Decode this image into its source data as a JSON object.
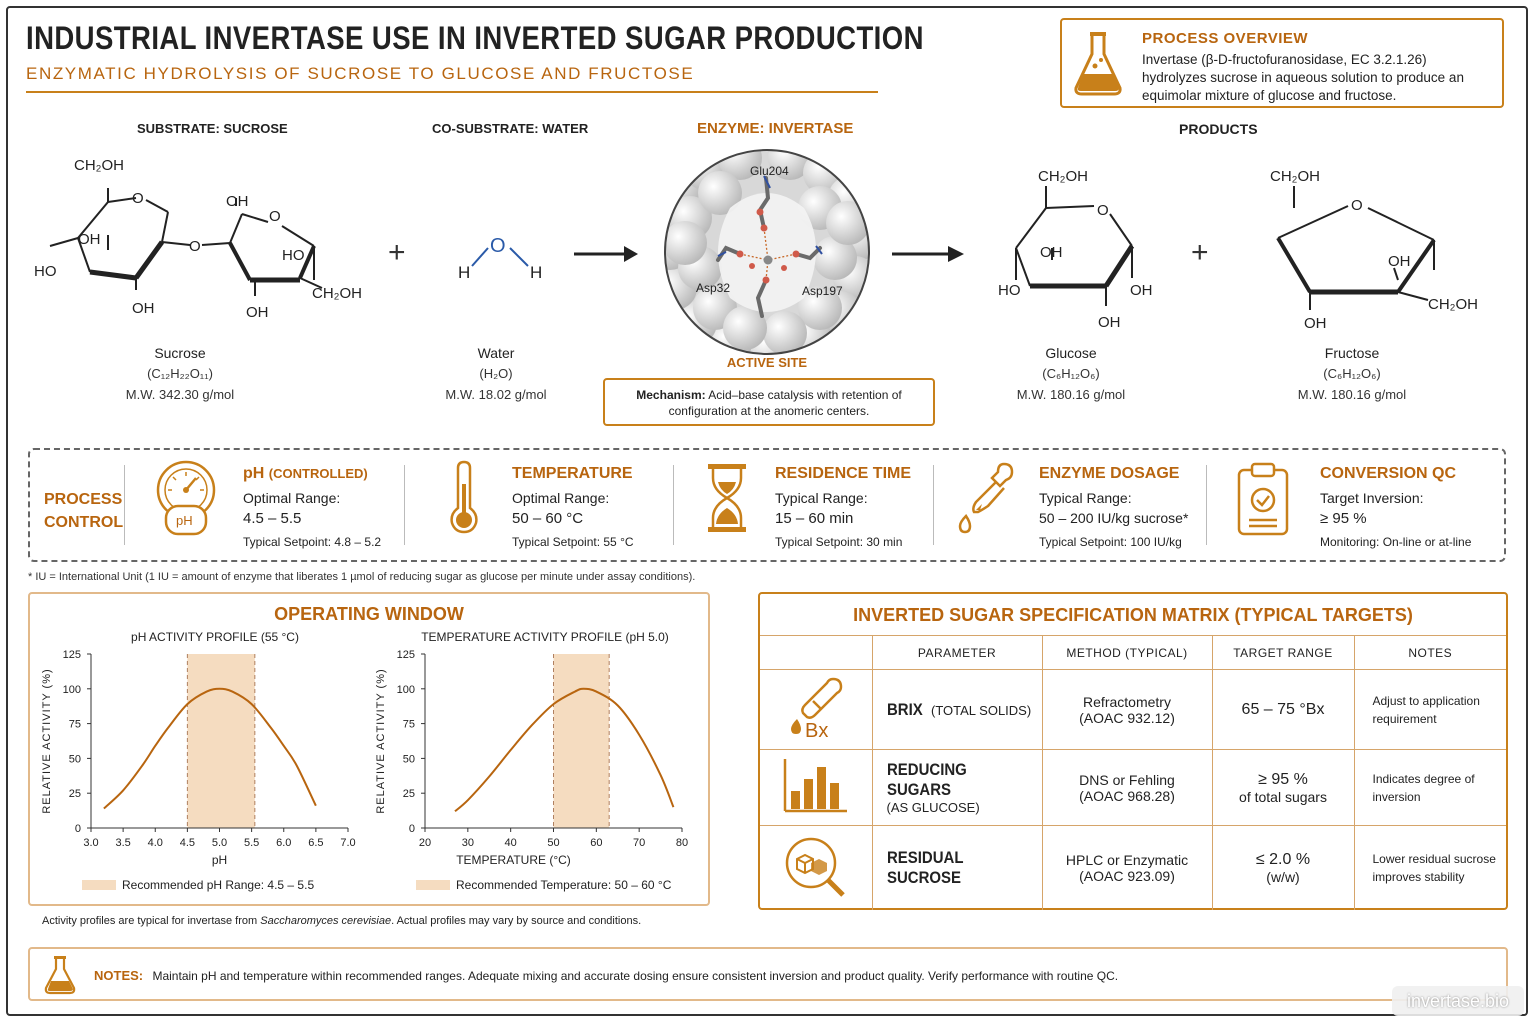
{
  "header": {
    "title": "INDUSTRIAL INVERTASE USE IN INVERTED SUGAR PRODUCTION",
    "subtitle": "ENZYMATIC HYDROLYSIS OF SUCROSE TO GLUCOSE AND FRUCTOSE"
  },
  "overview": {
    "heading": "PROCESS OVERVIEW",
    "text": "Invertase (β-D-fructofuranosidase, EC 3.2.1.26) hydrolyzes sucrose in aqueous solution to produce an equimolar mixture of glucose and fructose.",
    "icon": "flask-icon"
  },
  "reaction": {
    "substrate_label": "SUBSTRATE: SUCROSE",
    "cosubstrate_label": "CO-SUBSTRATE: WATER",
    "enzyme_label": "ENZYME: INVERTASE",
    "products_label": "PRODUCTS",
    "plus": "+",
    "sucrose": {
      "name": "Sucrose",
      "formula": "(C₁₂H₂₂O₁₁)",
      "mw": "M.W. 342.30 g/mol"
    },
    "water": {
      "name": "Water",
      "formula": "(H₂O)",
      "mw": "M.W. 18.02 g/mol"
    },
    "glucose": {
      "name": "Glucose",
      "formula": "(C₆H₁₂O₆)",
      "mw": "M.W. 180.16 g/mol"
    },
    "fructose": {
      "name": "Fructose",
      "formula": "(C₆H₁₂O₆)",
      "mw": "M.W. 180.16 g/mol"
    },
    "active_site_label": "ACTIVE SITE",
    "residues": {
      "glu": "Glu204",
      "asp32": "Asp32",
      "asp197": "Asp197"
    },
    "mechanism_head": "Mechanism:",
    "mechanism_text": "Acid–base catalysis with retention of configuration at the anomeric centers.",
    "atoms": {
      "ch2oh": "CH₂OH",
      "oh": "OH",
      "ho": "HO",
      "o": "O",
      "h": "H"
    }
  },
  "process_control": {
    "label_line1": "PROCESS",
    "label_line2": "CONTROL",
    "items": [
      {
        "icon": "gauge-icon",
        "heading": "pH",
        "heading_suffix": "(CONTROLLED)",
        "range_label": "Optimal Range:",
        "range": "4.5 – 5.5",
        "setpoint": "Typical Setpoint: 4.8 – 5.2",
        "icon_text": "pH"
      },
      {
        "icon": "thermometer-icon",
        "heading": "TEMPERATURE",
        "range_label": "Optimal Range:",
        "range": "50 – 60 °C",
        "setpoint": "Typical Setpoint: 55 °C"
      },
      {
        "icon": "hourglass-icon",
        "heading": "RESIDENCE TIME",
        "range_label": "Typical Range:",
        "range": "15 – 60 min",
        "setpoint": "Typical Setpoint: 30 min"
      },
      {
        "icon": "dropper-icon",
        "heading": "ENZYME DOSAGE",
        "range_label": "Typical Range:",
        "range": "50 – 200 IU/kg sucrose*",
        "setpoint": "Typical Setpoint: 100 IU/kg"
      },
      {
        "icon": "clipboard-check-icon",
        "heading": "CONVERSION QC",
        "range_label": "Target Inversion:",
        "range": "≥ 95 %",
        "setpoint": "Monitoring: On-line or at-line"
      }
    ],
    "footnote": "* IU = International Unit (1 IU = amount of enzyme that liberates 1 µmol of reducing sugar as glucose per minute under assay conditions)."
  },
  "operating_window": {
    "title": "OPERATING WINDOW",
    "note_prefix": "Activity profiles are typical for invertase from ",
    "note_species": "Saccharomyces cerevisiae",
    "note_suffix": ". Actual profiles may vary by source and conditions."
  },
  "chart_data": [
    {
      "type": "line",
      "title": "pH ACTIVITY PROFILE (55 °C)",
      "xlabel": "pH",
      "ylabel": "RELATIVE ACTIVITY (%)",
      "xlim": [
        3.0,
        7.0
      ],
      "ylim": [
        0,
        125
      ],
      "xticks": [
        "3.0",
        "3.5",
        "4.0",
        "4.5",
        "5.0",
        "5.5",
        "6.0",
        "6.5",
        "7.0"
      ],
      "yticks": [
        "0",
        "25",
        "50",
        "75",
        "100",
        "125"
      ],
      "x": [
        3.2,
        3.5,
        3.8,
        4.0,
        4.2,
        4.5,
        4.8,
        5.0,
        5.2,
        5.5,
        5.8,
        6.0,
        6.2,
        6.5
      ],
      "y": [
        14,
        27,
        45,
        59,
        72,
        89,
        98,
        100,
        98,
        89,
        72,
        59,
        45,
        16
      ],
      "band": [
        4.5,
        5.55
      ],
      "legend": "Recommended pH Range: 4.5 – 5.5",
      "color": "#b8650f",
      "band_color": "#f5dcc0",
      "grid": false
    },
    {
      "type": "line",
      "title": "TEMPERATURE ACTIVITY PROFILE (pH 5.0)",
      "xlabel": "TEMPERATURE (°C)",
      "ylabel": "RELATIVE ACTIVITY (%)",
      "xlim": [
        20,
        80
      ],
      "ylim": [
        0,
        125
      ],
      "xticks": [
        "20",
        "30",
        "40",
        "50",
        "60",
        "70",
        "80"
      ],
      "yticks": [
        "0",
        "25",
        "50",
        "75",
        "100",
        "125"
      ],
      "x": [
        27,
        30,
        35,
        40,
        45,
        50,
        55,
        57,
        60,
        65,
        70,
        75,
        78
      ],
      "y": [
        12,
        20,
        37,
        56,
        74,
        89,
        98,
        100,
        98,
        88,
        67,
        38,
        15
      ],
      "band": [
        50,
        63
      ],
      "legend": "Recommended Temperature: 50 – 60 °C",
      "color": "#b8650f",
      "band_color": "#f5dcc0",
      "grid": false
    }
  ],
  "matrix": {
    "title": "INVERTED SUGAR SPECIFICATION MATRIX (TYPICAL TARGETS)",
    "headers": [
      "PARAMETER",
      "METHOD (TYPICAL)",
      "TARGET RANGE",
      "NOTES"
    ],
    "rows": [
      {
        "icon": "refractometer-icon",
        "icon_text": "Bx",
        "param": "BRIX",
        "param_sub": "(TOTAL SOLIDS)",
        "method1": "Refractometry",
        "method2": "(AOAC 932.12)",
        "target1": "65 – 75 °Bx",
        "target2": "",
        "notes": "Adjust to application requirement"
      },
      {
        "icon": "bar-chart-icon",
        "icon_text": "",
        "param": "REDUCING SUGARS",
        "param_sub": "(AS GLUCOSE)",
        "method1": "DNS or Fehling",
        "method2": "(AOAC 968.28)",
        "target1": "≥ 95 %",
        "target2": "of total sugars",
        "notes": "Indicates degree of inversion"
      },
      {
        "icon": "magnifier-cubes-icon",
        "icon_text": "",
        "param": "RESIDUAL SUCROSE",
        "param_sub": "",
        "method1": "HPLC or Enzymatic",
        "method2": "(AOAC 923.09)",
        "target1": "≤ 2.0 %",
        "target2": "(w/w)",
        "notes": "Lower residual sucrose improves stability"
      }
    ]
  },
  "notes_bar": {
    "head": "NOTES:",
    "text": "Maintain pH and temperature within recommended ranges. Adequate mixing and accurate dosing ensure  consistent inversion and product quality. Verify performance with routine QC.",
    "icon": "flask-icon"
  },
  "watermark": "invertase.bio",
  "colors": {
    "accent": "#b8650f",
    "accent_light": "#f5dcc0",
    "border": "#c8801a"
  }
}
